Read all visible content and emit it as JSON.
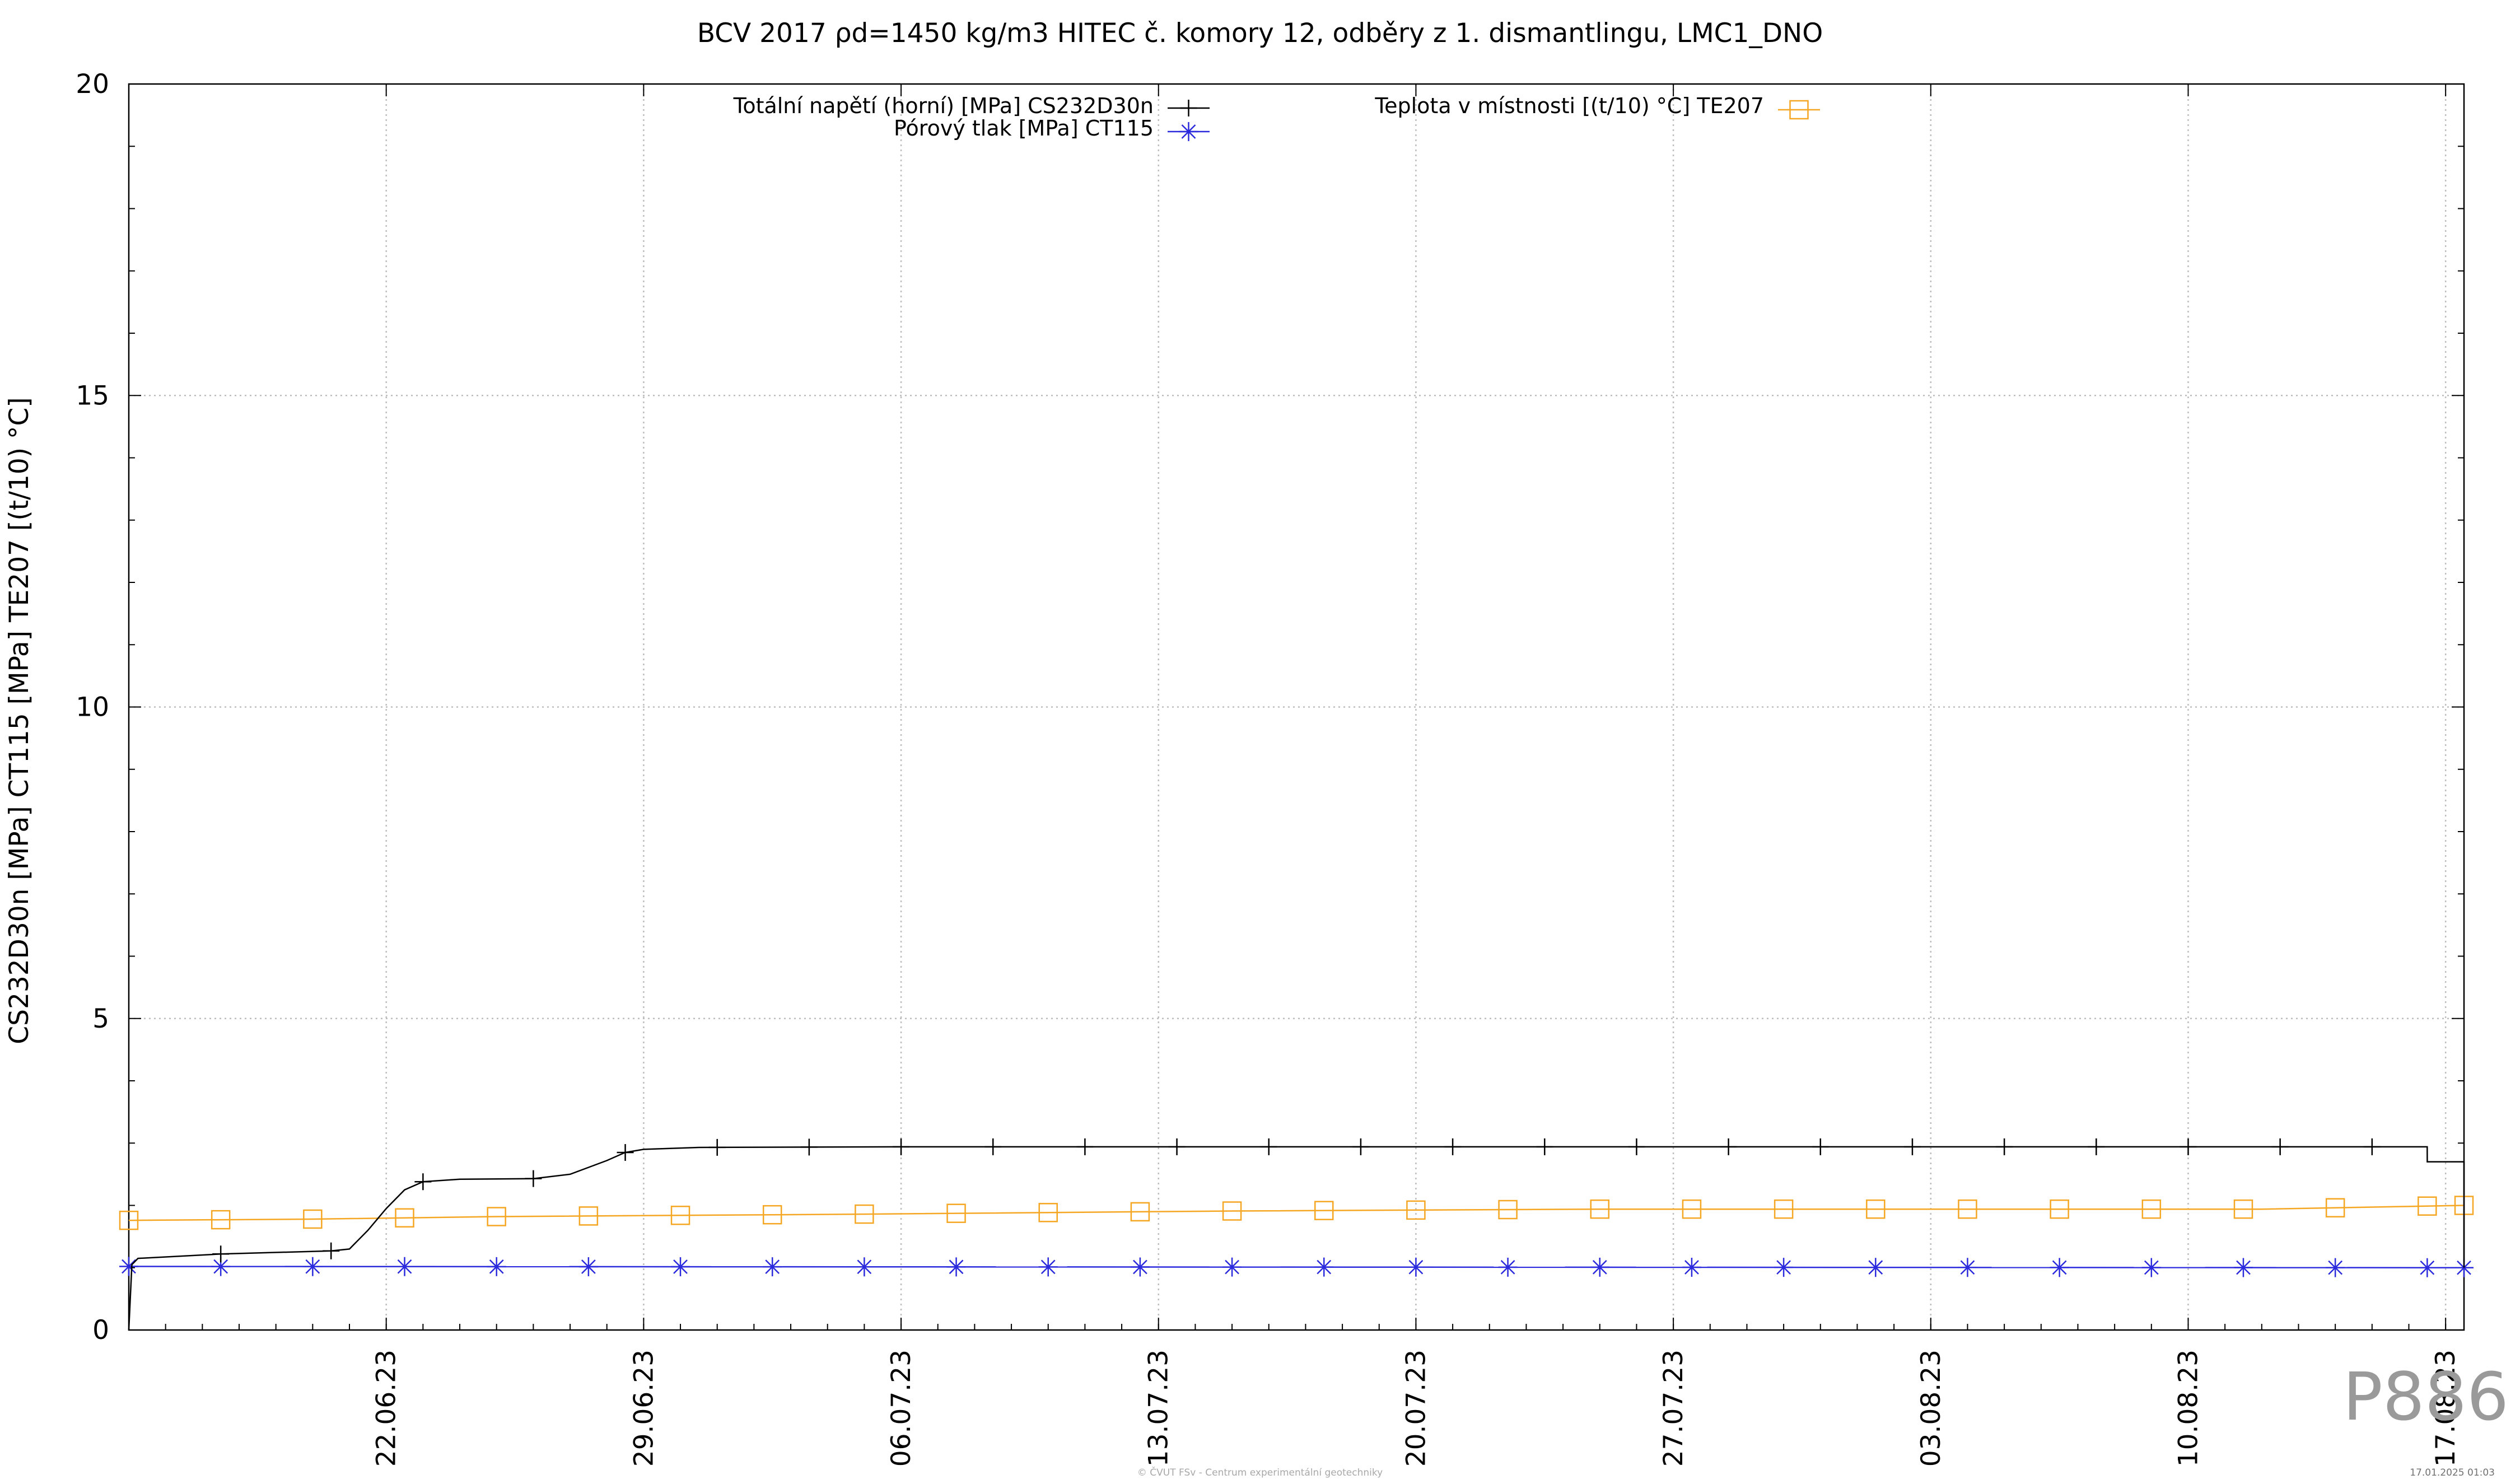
{
  "chart_data": {
    "type": "line",
    "title": "BCV 2017 ρd=1450 kg/m3 HITEC č. komory 12, odběry z 1. dismantlingu, LMC1_DNO",
    "ylabel": "CS232D30n [MPa] CT115 [MPa] TE207 [(t/10) °C]",
    "xlabel": "",
    "xlim": [
      "2023-06-15",
      "2023-08-17 12:00"
    ],
    "ylim": [
      0,
      20
    ],
    "yticks": [
      0,
      5,
      10,
      15,
      20
    ],
    "xticks": [
      "2023-06-22",
      "2023-06-29",
      "2023-07-06",
      "2023-07-13",
      "2023-07-20",
      "2023-07-27",
      "2023-08-03",
      "2023-08-10",
      "2023-08-17"
    ],
    "xtick_labels": [
      "22.06.23",
      "29.06.23",
      "06.07.23",
      "13.07.23",
      "20.07.23",
      "27.07.23",
      "03.08.23",
      "10.08.23",
      "17.08.23"
    ],
    "grid": true,
    "legend": "top-center",
    "series": [
      {
        "name": "Totální napětí (horní) [MPa] CS232D30n",
        "color": "#000000",
        "marker": "plus",
        "points": [
          [
            "2023-06-15 00:00",
            0.0
          ],
          [
            "2023-06-15 02:00",
            1.05
          ],
          [
            "2023-06-15 06:00",
            1.15
          ],
          [
            "2023-06-17 12:00",
            1.22
          ],
          [
            "2023-06-20 12:00",
            1.27
          ],
          [
            "2023-06-21 00:00",
            1.3
          ],
          [
            "2023-06-21 12:00",
            1.6
          ],
          [
            "2023-06-22 00:00",
            1.95
          ],
          [
            "2023-06-22 12:00",
            2.25
          ],
          [
            "2023-06-23 00:00",
            2.38
          ],
          [
            "2023-06-24 00:00",
            2.42
          ],
          [
            "2023-06-26 00:00",
            2.43
          ],
          [
            "2023-06-27 00:00",
            2.5
          ],
          [
            "2023-06-28 00:00",
            2.72
          ],
          [
            "2023-06-28 12:00",
            2.85
          ],
          [
            "2023-06-29 00:00",
            2.9
          ],
          [
            "2023-06-30 12:00",
            2.93
          ],
          [
            "2023-07-06 00:00",
            2.94
          ],
          [
            "2023-08-16 12:00",
            2.94
          ],
          [
            "2023-08-16 12:01",
            2.7
          ],
          [
            "2023-08-17 12:00",
            2.7
          ],
          [
            "2023-08-17 12:01",
            1.0
          ]
        ],
        "marker_dates": [
          "2023-06-17 12:00",
          "2023-06-20 12:00",
          "2023-06-23 00:00",
          "2023-06-26 00:00",
          "2023-06-28 12:00",
          "2023-07-01 00:00",
          "2023-07-03 12:00",
          "2023-07-06 00:00",
          "2023-07-08 12:00",
          "2023-07-11 00:00",
          "2023-07-13 12:00",
          "2023-07-16 00:00",
          "2023-07-18 12:00",
          "2023-07-21 00:00",
          "2023-07-23 12:00",
          "2023-07-26 00:00",
          "2023-07-28 12:00",
          "2023-07-31 00:00",
          "2023-08-02 12:00",
          "2023-08-05 00:00",
          "2023-08-07 12:00",
          "2023-08-10 00:00",
          "2023-08-12 12:00",
          "2023-08-15 00:00"
        ]
      },
      {
        "name": "Pórový tlak [MPa] CT115",
        "color": "#2b2bdd",
        "marker": "star",
        "points": [
          [
            "2023-06-15 00:00",
            1.02
          ],
          [
            "2023-08-17 12:00",
            1.0
          ]
        ],
        "marker_dates": [
          "2023-06-15 00:00",
          "2023-06-17 12:00",
          "2023-06-20 00:00",
          "2023-06-22 12:00",
          "2023-06-25 00:00",
          "2023-06-27 12:00",
          "2023-06-30 00:00",
          "2023-07-02 12:00",
          "2023-07-05 00:00",
          "2023-07-07 12:00",
          "2023-07-10 00:00",
          "2023-07-12 12:00",
          "2023-07-15 00:00",
          "2023-07-17 12:00",
          "2023-07-20 00:00",
          "2023-07-22 12:00",
          "2023-07-25 00:00",
          "2023-07-27 12:00",
          "2023-07-30 00:00",
          "2023-08-01 12:00",
          "2023-08-04 00:00",
          "2023-08-06 12:00",
          "2023-08-09 00:00",
          "2023-08-11 12:00",
          "2023-08-14 00:00",
          "2023-08-16 12:00",
          "2023-08-17 12:00"
        ]
      },
      {
        "name": "Teplota v místnosti [(t/10) °C] TE207",
        "color": "#f5a623",
        "marker": "square",
        "points": [
          [
            "2023-06-15 00:00",
            1.76
          ],
          [
            "2023-06-20 00:00",
            1.78
          ],
          [
            "2023-06-25 00:00",
            1.82
          ],
          [
            "2023-07-05 00:00",
            1.86
          ],
          [
            "2023-07-15 00:00",
            1.91
          ],
          [
            "2023-07-25 00:00",
            1.94
          ],
          [
            "2023-08-05 00:00",
            1.94
          ],
          [
            "2023-08-12 00:00",
            1.94
          ],
          [
            "2023-08-17 12:00",
            2.0
          ]
        ],
        "marker_dates": [
          "2023-06-15 00:00",
          "2023-06-17 12:00",
          "2023-06-20 00:00",
          "2023-06-22 12:00",
          "2023-06-25 00:00",
          "2023-06-27 12:00",
          "2023-06-30 00:00",
          "2023-07-02 12:00",
          "2023-07-05 00:00",
          "2023-07-07 12:00",
          "2023-07-10 00:00",
          "2023-07-12 12:00",
          "2023-07-15 00:00",
          "2023-07-17 12:00",
          "2023-07-20 00:00",
          "2023-07-22 12:00",
          "2023-07-25 00:00",
          "2023-07-27 12:00",
          "2023-07-30 00:00",
          "2023-08-01 12:00",
          "2023-08-04 00:00",
          "2023-08-06 12:00",
          "2023-08-09 00:00",
          "2023-08-11 12:00",
          "2023-08-14 00:00",
          "2023-08-16 12:00",
          "2023-08-17 12:00"
        ]
      }
    ]
  },
  "footer": {
    "code": "P886",
    "credit": "© ČVUT FSv - Centrum experimentální geotechniky",
    "timestamp": "17.01.2025 01:03"
  }
}
